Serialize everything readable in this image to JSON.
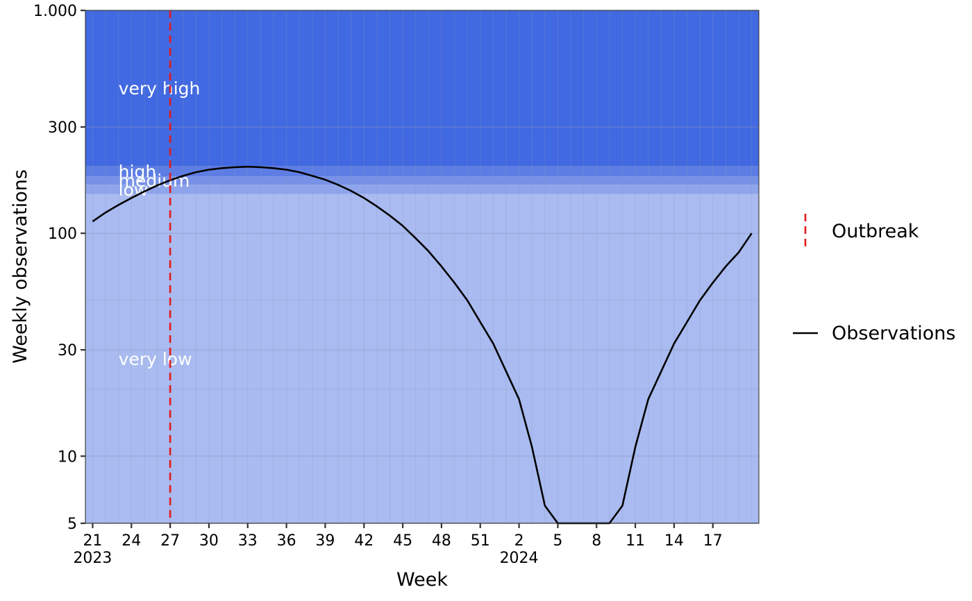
{
  "chart_data": {
    "type": "line",
    "xlabel": "Week",
    "ylabel": "Weekly observations",
    "yscale": "log",
    "ylim": [
      5,
      1000
    ],
    "y_ticks": [
      {
        "value": 5,
        "label": "5"
      },
      {
        "value": 10,
        "label": "10"
      },
      {
        "value": 30,
        "label": "30"
      },
      {
        "value": 100,
        "label": "100"
      },
      {
        "value": 300,
        "label": "300"
      },
      {
        "value": 1000,
        "label": "1.000"
      }
    ],
    "x_ticks": [
      {
        "week": "2023-W21",
        "label": "21",
        "year_label": "2023"
      },
      {
        "week": "2023-W24",
        "label": "24"
      },
      {
        "week": "2023-W27",
        "label": "27"
      },
      {
        "week": "2023-W30",
        "label": "30"
      },
      {
        "week": "2023-W33",
        "label": "33"
      },
      {
        "week": "2023-W36",
        "label": "36"
      },
      {
        "week": "2023-W39",
        "label": "39"
      },
      {
        "week": "2023-W42",
        "label": "42"
      },
      {
        "week": "2023-W45",
        "label": "45"
      },
      {
        "week": "2023-W48",
        "label": "48"
      },
      {
        "week": "2023-W51",
        "label": "51"
      },
      {
        "week": "2024-W02",
        "label": "2",
        "year_label": "2024"
      },
      {
        "week": "2024-W05",
        "label": "5"
      },
      {
        "week": "2024-W08",
        "label": "8"
      },
      {
        "week": "2024-W11",
        "label": "11"
      },
      {
        "week": "2024-W14",
        "label": "14"
      },
      {
        "week": "2024-W17",
        "label": "17"
      }
    ],
    "intensity_levels": [
      {
        "name": "very low",
        "from": 5,
        "to": 150,
        "color": "#A9BBF0"
      },
      {
        "name": "low",
        "from": 150,
        "to": 165,
        "color": "#8EA5EB"
      },
      {
        "name": "medium",
        "from": 165,
        "to": 180,
        "color": "#7791E7"
      },
      {
        "name": "high",
        "from": 180,
        "to": 200,
        "color": "#5D7DE4"
      },
      {
        "name": "very high",
        "from": 200,
        "to": 1000,
        "color": "#4169E1"
      }
    ],
    "outbreak": {
      "week": "2023-W27",
      "color": "#E31A1C"
    },
    "series": [
      {
        "name": "Observations",
        "color": "#000000",
        "x": [
          "2023-W21",
          "2023-W22",
          "2023-W23",
          "2023-W24",
          "2023-W25",
          "2023-W26",
          "2023-W27",
          "2023-W28",
          "2023-W29",
          "2023-W30",
          "2023-W31",
          "2023-W32",
          "2023-W33",
          "2023-W34",
          "2023-W35",
          "2023-W36",
          "2023-W37",
          "2023-W38",
          "2023-W39",
          "2023-W40",
          "2023-W41",
          "2023-W42",
          "2023-W43",
          "2023-W44",
          "2023-W45",
          "2023-W46",
          "2023-W47",
          "2023-W48",
          "2023-W49",
          "2023-W50",
          "2023-W51",
          "2023-W52",
          "2024-W01",
          "2024-W02",
          "2024-W03",
          "2024-W04",
          "2024-W05",
          "2024-W06",
          "2024-W07",
          "2024-W08",
          "2024-W09",
          "2024-W10",
          "2024-W11",
          "2024-W12",
          "2024-W13",
          "2024-W14",
          "2024-W15",
          "2024-W16",
          "2024-W17",
          "2024-W18",
          "2024-W19",
          "2024-W20"
        ],
        "values": [
          113,
          124,
          134,
          144,
          154,
          164,
          173,
          181,
          188,
          193,
          196,
          198,
          199,
          198,
          196,
          193,
          188,
          181,
          174,
          165,
          155,
          144,
          132,
          120,
          108,
          95,
          83,
          71,
          60,
          50,
          40,
          32,
          24,
          18,
          11,
          6,
          5,
          5,
          5,
          5,
          5,
          6,
          11,
          18,
          24,
          32,
          40,
          50,
          60,
          71,
          82,
          100
        ]
      }
    ],
    "legend": {
      "placement": "right",
      "entries": [
        {
          "label": "Outbreak"
        },
        {
          "label": "Observations"
        }
      ]
    },
    "grid": true
  }
}
